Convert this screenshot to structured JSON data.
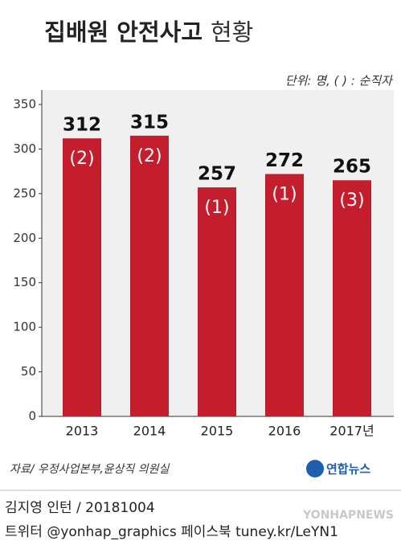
{
  "chart_data": {
    "type": "bar",
    "title": "집배원 안전사고",
    "title_suffix": "현황",
    "unit_note": "단위: 명, ( ) : 순직자",
    "categories": [
      "2013",
      "2014",
      "2015",
      "2016",
      "2017년"
    ],
    "values": [
      312,
      315,
      257,
      272,
      265
    ],
    "color": "#c41e2e",
    "fatalities": {
      "values": [
        2,
        2,
        1,
        1,
        3
      ],
      "value_labels": [
        "(2)",
        "(2)",
        "(1)",
        "(1)",
        "(3)"
      ]
    },
    "ylim": [
      0,
      350
    ],
    "yticks": [
      0,
      50,
      100,
      150,
      200,
      250,
      300,
      350
    ],
    "grid": false,
    "source": "자료/ 우정사업본부,윤상직 의원실",
    "logo": "연합뉴스",
    "watermark": "YONHAPNEWS",
    "credit": "김지영 인턴 / 20181004",
    "social": "트위터 @yonhap_graphics  페이스북 tuney.kr/LeYN1"
  }
}
